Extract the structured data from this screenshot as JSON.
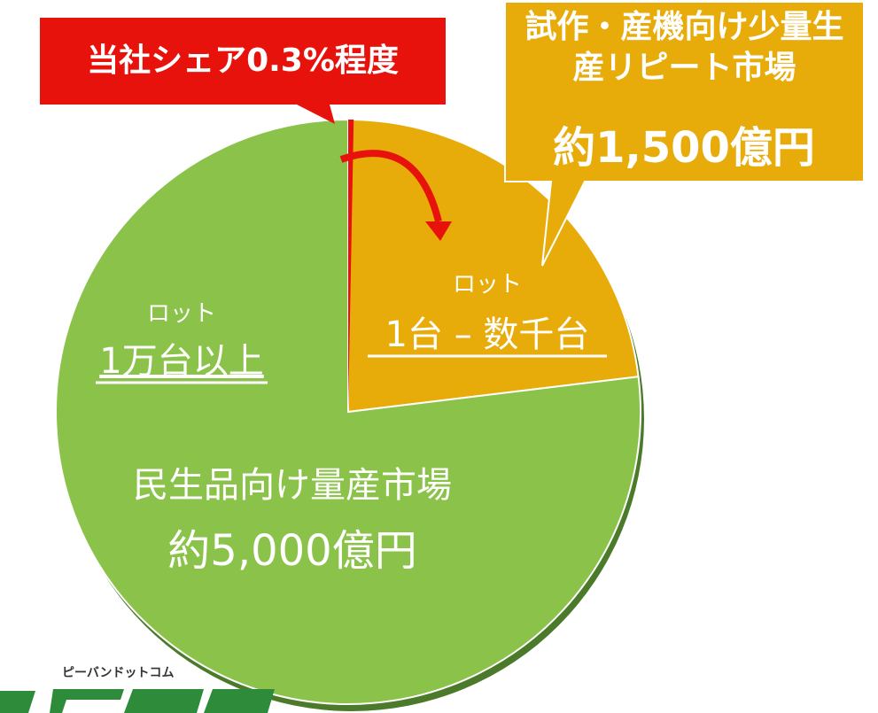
{
  "chart_data": {
    "type": "pie",
    "categories": [
      "民生品向け量産市場",
      "試作・産機向け少量生産リピート市場"
    ],
    "values": [
      5000,
      1500
    ],
    "value_labels": [
      "約5,000億円",
      "約1,500億円"
    ],
    "colors": [
      "#8bc34a",
      "#e8ac0a"
    ],
    "lot_title": "ロット",
    "lot_labels": [
      "1万台以上",
      "1台 – 数千台"
    ],
    "share": {
      "label": "当社シェア0.3%程度",
      "value": 0.3,
      "color": "#e8120c"
    },
    "logo": "ピーバンドットコム"
  }
}
